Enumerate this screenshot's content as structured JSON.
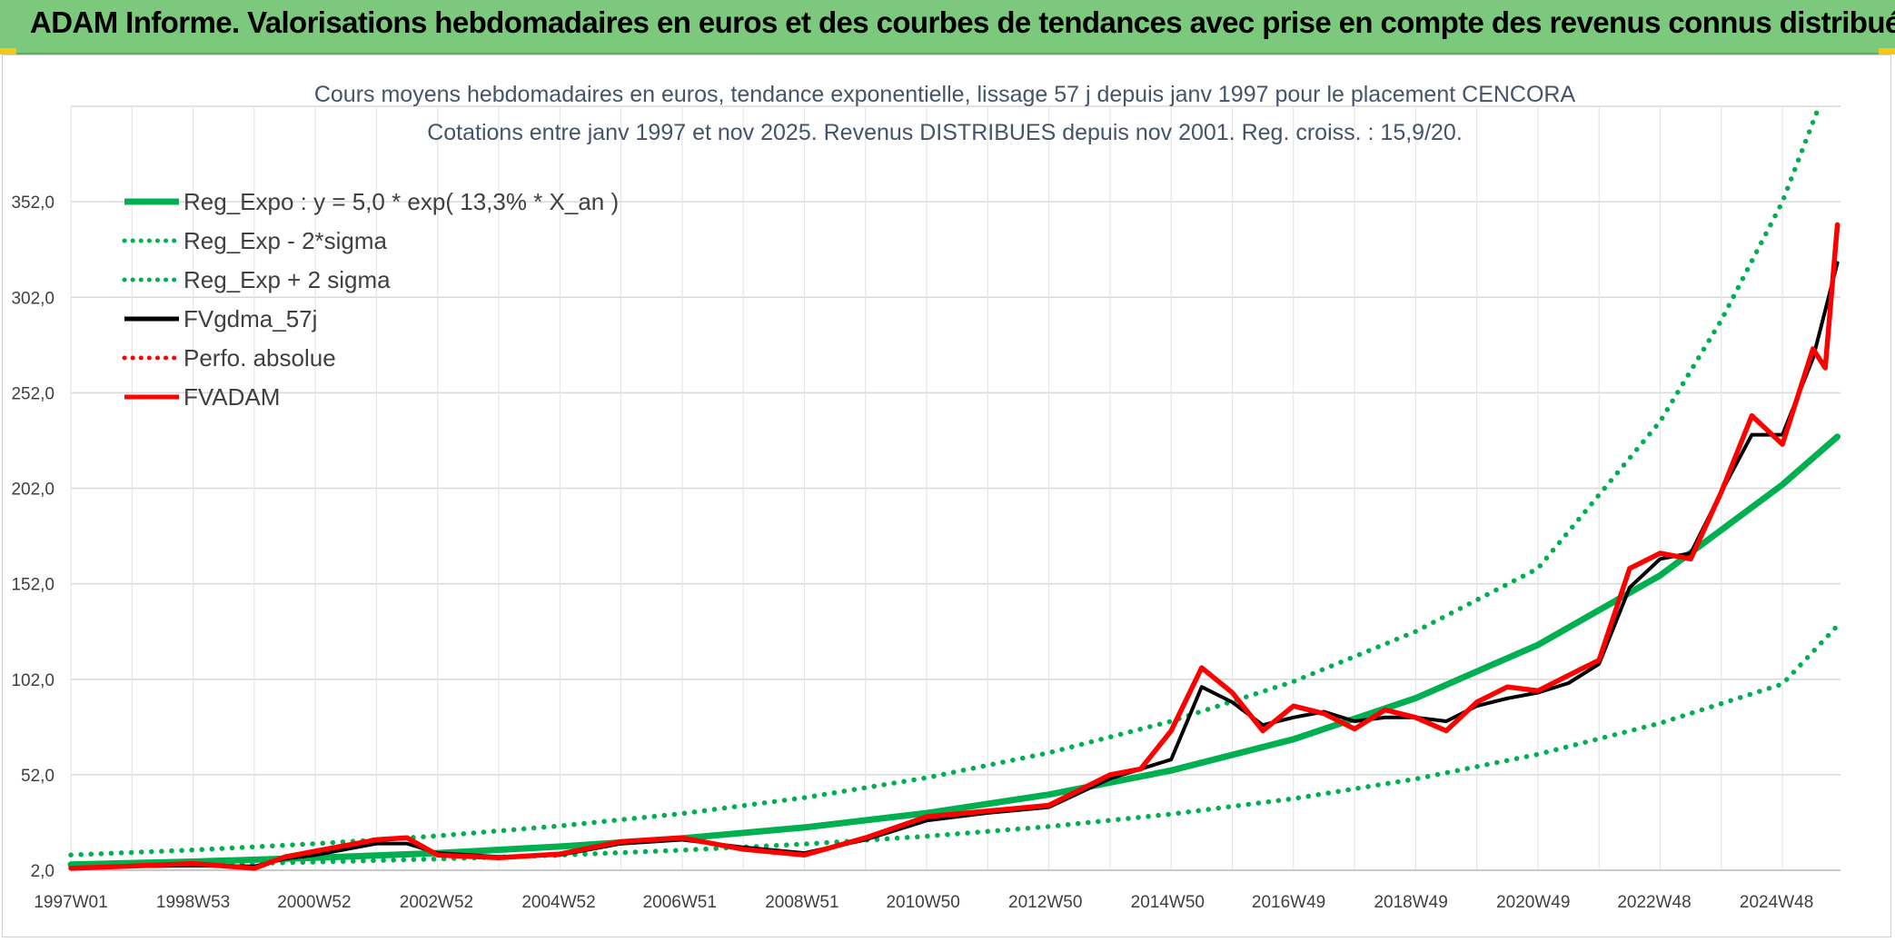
{
  "banner": {
    "title": "ADAM Informe. Valorisations hebdomadaires en euros et des courbes de tendances avec prise en compte des revenus connus distribués"
  },
  "colors": {
    "banner_bg": "#7cc97e",
    "trend_green": "#00b050",
    "gdma_black": "#000000",
    "fvadam_red": "#ff0000",
    "grid": "#d9d9d9"
  },
  "chart_data": {
    "type": "line",
    "title_line1": "Cours moyens hebdomadaires en euros, tendance exponentielle, lissage 57 j depuis janv 1997 pour le placement CENCORA",
    "title_line2": "Cotations entre janv 1997 et nov 2025. Revenus DISTRIBUES depuis nov 2001. Reg. croiss. : 15,9/20.",
    "xlabel": "",
    "ylabel": "",
    "x_range": [
      "1997W01",
      "2025W47"
    ],
    "ylim": [
      2.0,
      402.0
    ],
    "y_ticks": [
      "2,0",
      "52,0",
      "102,0",
      "152,0",
      "202,0",
      "252,0",
      "302,0",
      "352,0"
    ],
    "x_ticks": [
      "1997W01",
      "1998W53",
      "2000W52",
      "2002W52",
      "2004W52",
      "2006W51",
      "2008W51",
      "2010W50",
      "2012W50",
      "2014W50",
      "2016W49",
      "2018W49",
      "2020W49",
      "2022W48",
      "2024W48"
    ],
    "grid": true,
    "legend_position": "top-left",
    "series": [
      {
        "name": "Reg_Expo : y = 5,0 * exp( 13,3% *  X_an )",
        "color": "#00b050",
        "style": "solid",
        "points": [
          [
            1997.0,
            5.0
          ],
          [
            1999.0,
            6.5
          ],
          [
            2001.0,
            8.5
          ],
          [
            2003.0,
            11.0
          ],
          [
            2005.0,
            14.4
          ],
          [
            2007.0,
            18.7
          ],
          [
            2009.0,
            24.4
          ],
          [
            2011.0,
            31.9
          ],
          [
            2013.0,
            41.6
          ],
          [
            2015.0,
            54.2
          ],
          [
            2017.0,
            70.6
          ],
          [
            2019.0,
            92.1
          ],
          [
            2021.0,
            120.0
          ],
          [
            2023.0,
            156.4
          ],
          [
            2025.0,
            203.9
          ],
          [
            2025.9,
            229.0
          ]
        ]
      },
      {
        "name": "Reg_Exp - 2*sigma",
        "color": "#00b050",
        "style": "dotted",
        "points": [
          [
            1997.0,
            4.0
          ],
          [
            1999.0,
            5.0
          ],
          [
            2001.0,
            6.3
          ],
          [
            2003.0,
            7.9
          ],
          [
            2005.0,
            9.9
          ],
          [
            2007.0,
            12.5
          ],
          [
            2009.0,
            15.7
          ],
          [
            2011.0,
            19.8
          ],
          [
            2013.0,
            24.9
          ],
          [
            2015.0,
            31.4
          ],
          [
            2017.0,
            39.5
          ],
          [
            2019.0,
            49.8
          ],
          [
            2021.0,
            62.7
          ],
          [
            2023.0,
            79.0
          ],
          [
            2025.0,
            99.5
          ],
          [
            2025.9,
            130.0
          ]
        ]
      },
      {
        "name": "Reg_Exp + 2 sigma",
        "color": "#00b050",
        "style": "dotted",
        "points": [
          [
            1997.0,
            10.0
          ],
          [
            1999.0,
            12.6
          ],
          [
            2001.0,
            15.9
          ],
          [
            2003.0,
            20.0
          ],
          [
            2005.0,
            25.2
          ],
          [
            2007.0,
            31.7
          ],
          [
            2009.0,
            40.0
          ],
          [
            2011.0,
            50.4
          ],
          [
            2013.0,
            63.5
          ],
          [
            2015.0,
            80.0
          ],
          [
            2017.0,
            100.8
          ],
          [
            2019.0,
            127.0
          ],
          [
            2021.0,
            160.0
          ],
          [
            2023.0,
            237.0
          ],
          [
            2024.0,
            290.0
          ],
          [
            2025.0,
            352.0
          ],
          [
            2025.6,
            402.0
          ]
        ]
      },
      {
        "name": "FVgdma_57j",
        "color": "#000000",
        "style": "solid",
        "points": [
          [
            1997.0,
            3.0
          ],
          [
            1998.0,
            4.0
          ],
          [
            1999.0,
            4.5
          ],
          [
            2000.0,
            4.0
          ],
          [
            2000.5,
            8.0
          ],
          [
            2001.0,
            10.0
          ],
          [
            2002.0,
            16.0
          ],
          [
            2002.5,
            16.0
          ],
          [
            2003.0,
            11.0
          ],
          [
            2004.0,
            9.0
          ],
          [
            2005.0,
            10.0
          ],
          [
            2006.0,
            16.0
          ],
          [
            2007.0,
            18.0
          ],
          [
            2008.0,
            14.0
          ],
          [
            2009.0,
            11.0
          ],
          [
            2010.0,
            18.0
          ],
          [
            2011.0,
            28.0
          ],
          [
            2012.0,
            32.0
          ],
          [
            2013.0,
            35.0
          ],
          [
            2014.0,
            50.0
          ],
          [
            2015.0,
            60.0
          ],
          [
            2015.5,
            98.0
          ],
          [
            2016.0,
            90.0
          ],
          [
            2016.5,
            78.0
          ],
          [
            2017.0,
            82.0
          ],
          [
            2017.5,
            85.0
          ],
          [
            2018.0,
            80.0
          ],
          [
            2018.5,
            82.0
          ],
          [
            2019.0,
            82.0
          ],
          [
            2019.5,
            80.0
          ],
          [
            2020.0,
            88.0
          ],
          [
            2020.5,
            92.0
          ],
          [
            2021.0,
            95.0
          ],
          [
            2021.5,
            100.0
          ],
          [
            2022.0,
            110.0
          ],
          [
            2022.5,
            150.0
          ],
          [
            2023.0,
            165.0
          ],
          [
            2023.5,
            168.0
          ],
          [
            2024.0,
            200.0
          ],
          [
            2024.5,
            230.0
          ],
          [
            2025.0,
            230.0
          ],
          [
            2025.5,
            270.0
          ],
          [
            2025.9,
            320.0
          ]
        ]
      },
      {
        "name": "Perfo. absolue",
        "color": "#ff0000",
        "style": "dotted",
        "points": []
      },
      {
        "name": "FVADAM",
        "color": "#ff0000",
        "style": "solid",
        "points": [
          [
            1997.0,
            3.0
          ],
          [
            1998.0,
            4.2
          ],
          [
            1999.0,
            5.5
          ],
          [
            2000.0,
            3.0
          ],
          [
            2000.5,
            9.0
          ],
          [
            2001.0,
            12.0
          ],
          [
            2002.0,
            18.0
          ],
          [
            2002.5,
            19.0
          ],
          [
            2003.0,
            10.0
          ],
          [
            2004.0,
            8.5
          ],
          [
            2005.0,
            10.5
          ],
          [
            2006.0,
            17.0
          ],
          [
            2007.0,
            19.0
          ],
          [
            2008.0,
            13.0
          ],
          [
            2009.0,
            10.0
          ],
          [
            2010.0,
            19.0
          ],
          [
            2011.0,
            30.0
          ],
          [
            2012.0,
            33.0
          ],
          [
            2013.0,
            36.0
          ],
          [
            2014.0,
            52.0
          ],
          [
            2014.5,
            55.0
          ],
          [
            2015.0,
            75.0
          ],
          [
            2015.5,
            108.0
          ],
          [
            2016.0,
            95.0
          ],
          [
            2016.5,
            75.0
          ],
          [
            2017.0,
            88.0
          ],
          [
            2017.5,
            84.0
          ],
          [
            2018.0,
            76.0
          ],
          [
            2018.5,
            86.0
          ],
          [
            2019.0,
            82.0
          ],
          [
            2019.5,
            75.0
          ],
          [
            2020.0,
            90.0
          ],
          [
            2020.5,
            98.0
          ],
          [
            2021.0,
            96.0
          ],
          [
            2021.5,
            104.0
          ],
          [
            2022.0,
            112.0
          ],
          [
            2022.5,
            160.0
          ],
          [
            2023.0,
            168.0
          ],
          [
            2023.5,
            165.0
          ],
          [
            2024.0,
            200.0
          ],
          [
            2024.5,
            240.0
          ],
          [
            2025.0,
            225.0
          ],
          [
            2025.5,
            275.0
          ],
          [
            2025.7,
            265.0
          ],
          [
            2025.9,
            340.0
          ]
        ]
      }
    ]
  }
}
